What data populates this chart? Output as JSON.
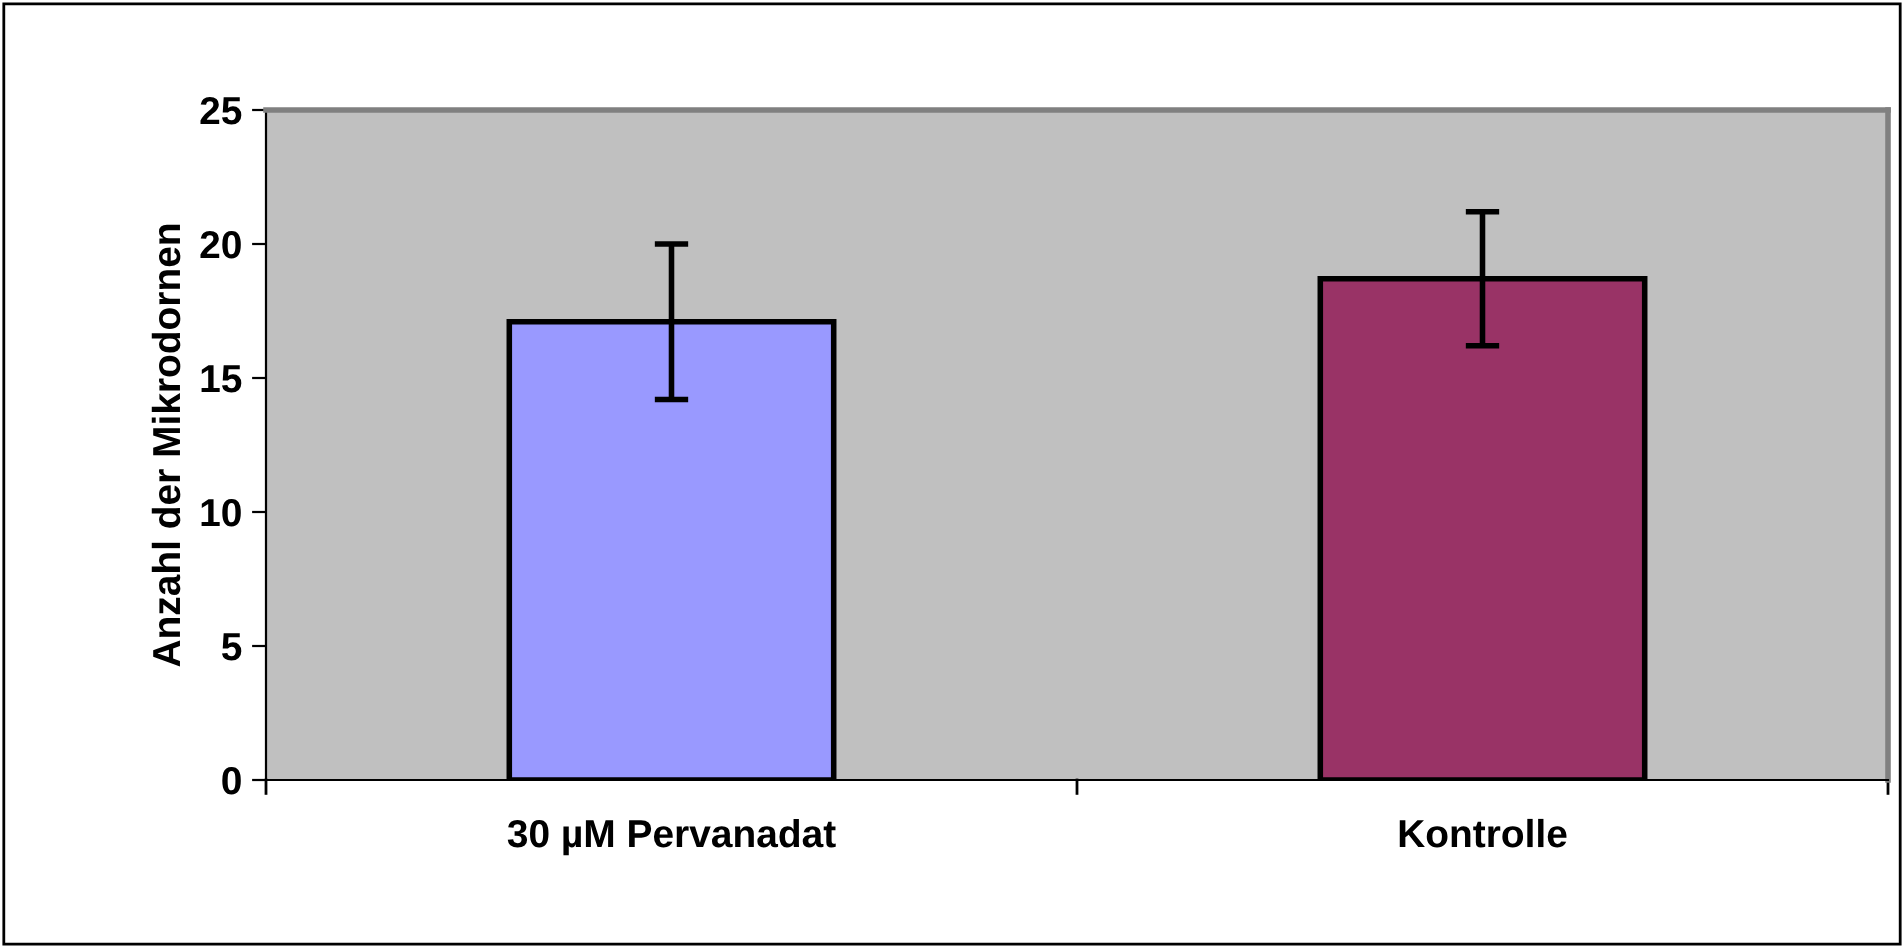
{
  "chart_data": {
    "type": "bar",
    "ylabel": "Anzahl der Mikrodornen",
    "categories": [
      "30 µM Pervanadat",
      "Kontrolle"
    ],
    "values": [
      17.1,
      18.7
    ],
    "colors": [
      "#9999ff",
      "#993366"
    ],
    "errors": [
      2.9,
      2.5
    ],
    "ylim": [
      0,
      25
    ],
    "yticks": [
      0,
      5,
      10,
      15,
      20,
      25
    ],
    "grid": false,
    "legend": false
  }
}
